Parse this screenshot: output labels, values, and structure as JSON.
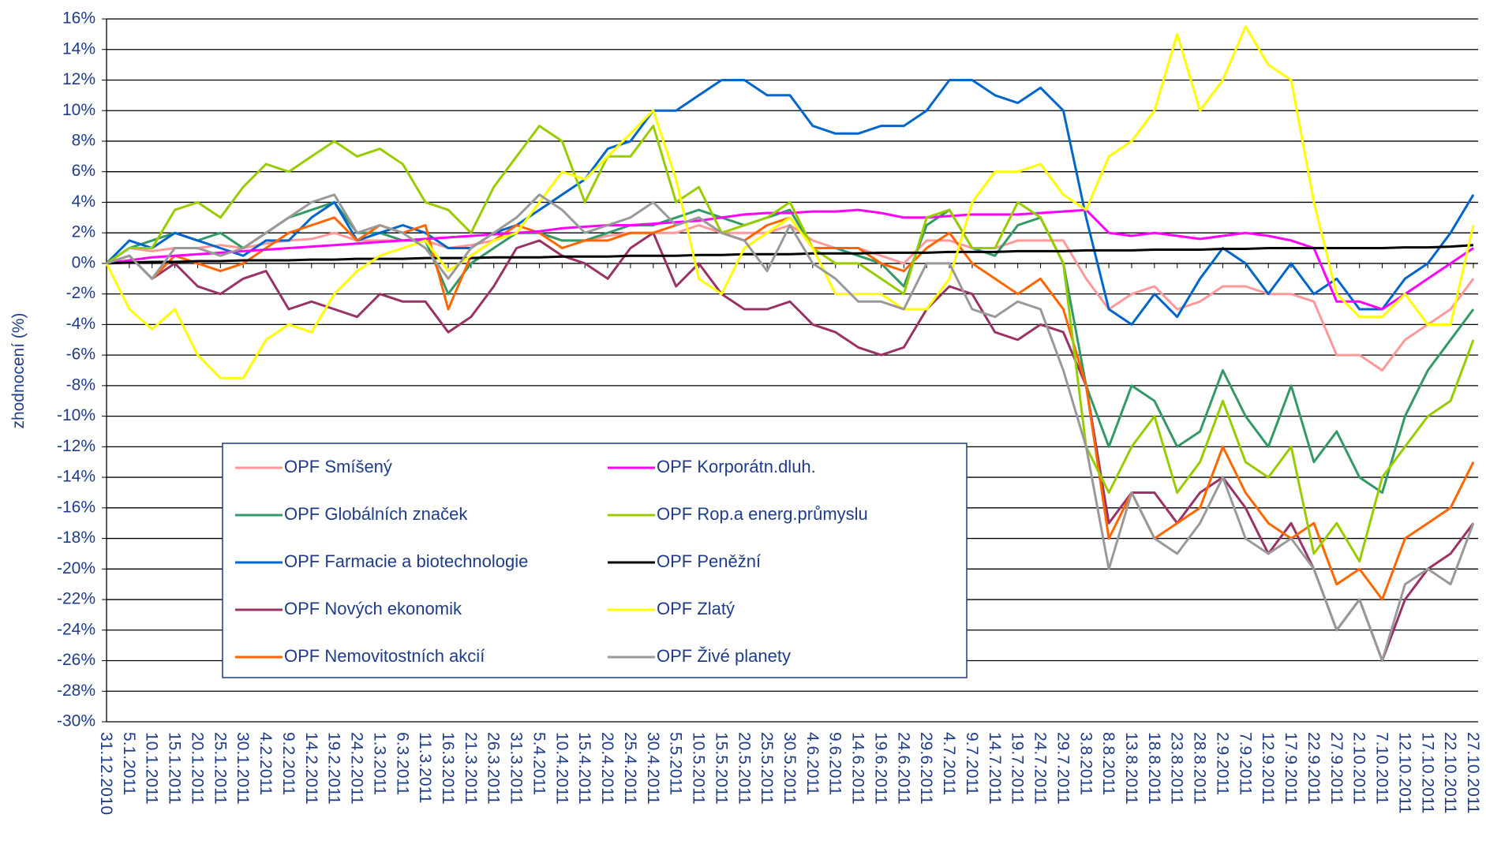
{
  "chart_data": {
    "type": "line",
    "y_axis_label": "zhodnocení (%)",
    "categories": [
      "31.12.2010",
      "5.1.2011",
      "10.1.2011",
      "15.1.2011",
      "20.1.2011",
      "25.1.2011",
      "30.1.2011",
      "4.2.2011",
      "9.2.2011",
      "14.2.2011",
      "19.2.2011",
      "24.2.2011",
      "1.3.2011",
      "6.3.2011",
      "11.3.2011",
      "16.3.2011",
      "21.3.2011",
      "26.3.2011",
      "31.3.2011",
      "5.4.2011",
      "10.4.2011",
      "15.4.2011",
      "20.4.2011",
      "25.4.2011",
      "30.4.2011",
      "5.5.2011",
      "10.5.2011",
      "15.5.2011",
      "20.5.2011",
      "25.5.2011",
      "30.5.2011",
      "4.6.2011",
      "9.6.2011",
      "14.6.2011",
      "19.6.2011",
      "24.6.2011",
      "29.6.2011",
      "4.7.2011",
      "9.7.2011",
      "14.7.2011",
      "19.7.2011",
      "24.7.2011",
      "29.7.2011",
      "3.8.2011",
      "8.8.2011",
      "13.8.2011",
      "18.8.2011",
      "23.8.2011",
      "28.8.2011",
      "2.9.2011",
      "7.9.2011",
      "12.9.2011",
      "17.9.2011",
      "22.9.2011",
      "27.9.2011",
      "2.10.2011",
      "7.10.2011",
      "12.10.2011",
      "17.10.2011",
      "22.10.2011",
      "27.10.2011"
    ],
    "ylim": [
      -30,
      16
    ],
    "yticks": [
      {
        "value": -30,
        "label": "-30%"
      },
      {
        "value": -28,
        "label": "-28%"
      },
      {
        "value": -26,
        "label": "-26%"
      },
      {
        "value": -24,
        "label": "-24%"
      },
      {
        "value": -22,
        "label": "-22%"
      },
      {
        "value": -20,
        "label": "-20%"
      },
      {
        "value": -18,
        "label": "-18%"
      },
      {
        "value": -16,
        "label": "-16%"
      },
      {
        "value": -14,
        "label": "-14%"
      },
      {
        "value": -12,
        "label": "-12%"
      },
      {
        "value": -10,
        "label": "-10%"
      },
      {
        "value": -8,
        "label": "-8%"
      },
      {
        "value": -6,
        "label": "-6%"
      },
      {
        "value": -4,
        "label": "-4%"
      },
      {
        "value": -2,
        "label": "-2%"
      },
      {
        "value": 0,
        "label": "0%"
      },
      {
        "value": 2,
        "label": "2%"
      },
      {
        "value": 4,
        "label": "4%"
      },
      {
        "value": 6,
        "label": "6%"
      },
      {
        "value": 8,
        "label": "8%"
      },
      {
        "value": 10,
        "label": "10%"
      },
      {
        "value": 12,
        "label": "12%"
      },
      {
        "value": 14,
        "label": "14%"
      },
      {
        "value": 16,
        "label": "16%"
      }
    ],
    "grid": true,
    "series": [
      {
        "name": "OPF Smíšený",
        "color": "#ff9999",
        "values": [
          0,
          1,
          0.8,
          1,
          1,
          1.2,
          1,
          1.3,
          1.5,
          1.6,
          2,
          1.5,
          1.5,
          1.5,
          1.5,
          1,
          1.2,
          1.5,
          2,
          2,
          1.5,
          1.5,
          1.8,
          2,
          2,
          2,
          2.5,
          2,
          2,
          2,
          2.5,
          1.5,
          1,
          1,
          0.5,
          0,
          1.5,
          1.5,
          1,
          1,
          1.5,
          1.5,
          1.5,
          -1,
          -3,
          -2,
          -1.5,
          -3,
          -2.5,
          -1.5,
          -1.5,
          -2,
          -2,
          -2.5,
          -6,
          -6,
          -7,
          -5,
          -4,
          -3,
          -1
        ]
      },
      {
        "name": "OPF Globálních značek",
        "color": "#339966",
        "values": [
          0,
          1,
          1.5,
          2,
          1.5,
          2,
          1,
          2,
          3,
          3.5,
          4,
          2,
          2,
          1.5,
          1.5,
          -2,
          0,
          1,
          2,
          2,
          1.5,
          1.5,
          2,
          2.5,
          2.5,
          3,
          3.5,
          3,
          2.5,
          3,
          3.5,
          1,
          1,
          0.5,
          0,
          -1.5,
          2.5,
          3.5,
          1,
          0.5,
          2.5,
          3,
          0,
          -8,
          -12,
          -8,
          -9,
          -12,
          -11,
          -7,
          -10,
          -12,
          -8,
          -13,
          -11,
          -14,
          -15,
          -10,
          -7,
          -5,
          -3
        ]
      },
      {
        "name": "OPF Farmacie a biotechnologie",
        "color": "#0066cc",
        "values": [
          0,
          1.5,
          1,
          2,
          1.5,
          1,
          0.5,
          1.5,
          1.5,
          3,
          4,
          1.5,
          2,
          2.5,
          2,
          1,
          1,
          2,
          2.5,
          3.5,
          4.5,
          5.5,
          7.5,
          8,
          10,
          10,
          11,
          12,
          12,
          11,
          11,
          9,
          8.5,
          8.5,
          9,
          9,
          10,
          12,
          12,
          11,
          10.5,
          11.5,
          10,
          3,
          -3,
          -4,
          -2,
          -3.5,
          -1,
          1,
          0,
          -2,
          0,
          -2,
          -1,
          -3,
          -3,
          -1,
          0,
          2,
          4.5
        ]
      },
      {
        "name": "OPF Nových ekonomik",
        "color": "#993366",
        "values": [
          0,
          0.5,
          -1,
          0,
          -1.5,
          -2,
          -1,
          -0.5,
          -3,
          -2.5,
          -3,
          -3.5,
          -2,
          -2.5,
          -2.5,
          -4.5,
          -3.5,
          -1.5,
          1,
          1.5,
          0.5,
          0,
          -1,
          1,
          2,
          -1.5,
          0,
          -2,
          -3,
          -3,
          -2.5,
          -4,
          -4.5,
          -5.5,
          -6,
          -5.5,
          -3,
          -1.5,
          -2,
          -4.5,
          -5,
          -4,
          -4.5,
          -8,
          -17,
          -15,
          -15,
          -17,
          -15,
          -14,
          -16,
          -19,
          -17,
          -20,
          -24,
          -22,
          -26,
          -22,
          -20,
          -19,
          -17
        ]
      },
      {
        "name": "OPF Nemovitostních akcií",
        "color": "#ff6600",
        "values": [
          0,
          0.5,
          -1,
          0.5,
          0,
          -0.5,
          0,
          1,
          2,
          2.5,
          3,
          1.5,
          2.5,
          2,
          2.5,
          -3,
          0.5,
          1.5,
          2.5,
          2,
          1,
          1.5,
          1.5,
          2,
          2,
          2.5,
          3,
          2,
          1.5,
          2.5,
          3,
          1,
          1,
          1,
          0,
          -0.5,
          1,
          2,
          0,
          -1,
          -2,
          -1,
          -3,
          -8,
          -18,
          -15,
          -18,
          -17,
          -16,
          -12,
          -15,
          -17,
          -18,
          -17,
          -21,
          -20,
          -22,
          -18,
          -17,
          -16,
          -13
        ]
      },
      {
        "name": "OPF Korporátn.dluh.",
        "color": "#ff00ff",
        "values": [
          0,
          0.2,
          0.4,
          0.5,
          0.6,
          0.7,
          0.8,
          0.9,
          1,
          1.1,
          1.2,
          1.3,
          1.4,
          1.5,
          1.6,
          1.7,
          1.8,
          1.9,
          2,
          2.1,
          2.3,
          2.4,
          2.5,
          2.5,
          2.6,
          2.7,
          2.8,
          3,
          3.2,
          3.3,
          3.3,
          3.4,
          3.4,
          3.5,
          3.3,
          3,
          3,
          3.1,
          3.2,
          3.2,
          3.2,
          3.3,
          3.4,
          3.5,
          2,
          1.8,
          2,
          1.8,
          1.6,
          1.8,
          2,
          1.8,
          1.5,
          1,
          -2.5,
          -2.5,
          -3,
          -2,
          -1,
          0,
          1
        ]
      },
      {
        "name": "OPF Rop.a energ.průmyslu",
        "color": "#99cc00",
        "values": [
          0,
          1,
          1,
          3.5,
          4,
          3,
          5,
          6.5,
          6,
          7,
          8,
          7,
          7.5,
          6.5,
          4,
          3.5,
          2,
          5,
          7,
          9,
          8,
          4,
          7,
          7,
          9,
          4,
          5,
          2,
          2.5,
          3,
          4,
          1,
          0,
          0,
          -1,
          -2,
          3,
          3.5,
          1,
          1,
          4,
          3,
          0,
          -12,
          -15,
          -12,
          -10,
          -15,
          -13,
          -9,
          -13,
          -14,
          -12,
          -19,
          -17,
          -19.5,
          -14,
          -12,
          -10,
          -9,
          -5
        ]
      },
      {
        "name": "OPF Peněžní",
        "color": "#000000",
        "values": [
          0,
          0.05,
          0.1,
          0.1,
          0.15,
          0.15,
          0.2,
          0.2,
          0.2,
          0.25,
          0.25,
          0.3,
          0.3,
          0.3,
          0.35,
          0.35,
          0.35,
          0.4,
          0.4,
          0.4,
          0.45,
          0.45,
          0.45,
          0.5,
          0.5,
          0.5,
          0.55,
          0.55,
          0.6,
          0.6,
          0.6,
          0.65,
          0.65,
          0.65,
          0.7,
          0.7,
          0.7,
          0.75,
          0.75,
          0.75,
          0.8,
          0.8,
          0.8,
          0.85,
          0.85,
          0.85,
          0.9,
          0.9,
          0.9,
          0.95,
          0.95,
          1,
          1,
          1,
          1,
          1,
          1,
          1.05,
          1.05,
          1.1,
          1.2
        ]
      },
      {
        "name": "OPF Zlatý",
        "color": "#ffff00",
        "values": [
          0,
          -3,
          -4.3,
          -3,
          -6,
          -7.5,
          -7.5,
          -5,
          -4,
          -4.5,
          -2,
          -0.5,
          0.5,
          1,
          1.5,
          -0.5,
          0.5,
          1.5,
          2,
          4,
          6,
          5.5,
          7,
          8.5,
          10,
          5.5,
          -1,
          -2,
          1,
          2,
          3,
          1,
          -2,
          -2,
          -2,
          -3,
          -3,
          -1,
          4,
          6,
          6,
          6.5,
          4.5,
          3.5,
          7,
          8,
          10,
          15,
          10,
          12,
          15.5,
          13,
          12,
          4,
          -2,
          -3.5,
          -3.5,
          -2,
          -4,
          -4,
          2.5
        ]
      },
      {
        "name": "OPF Živé planety",
        "color": "#999999",
        "values": [
          0,
          0.5,
          -1,
          1,
          1,
          0.5,
          1,
          2,
          3,
          4,
          4.5,
          2,
          2.5,
          2,
          1,
          -1,
          1,
          2,
          3,
          4.5,
          3.5,
          2,
          2.5,
          3,
          4,
          2.5,
          3,
          2,
          1.5,
          -0.5,
          2.5,
          0,
          -1,
          -2.5,
          -2.5,
          -3,
          0,
          0,
          -3,
          -3.5,
          -2.5,
          -3,
          -7,
          -12,
          -20,
          -15,
          -18,
          -19,
          -17,
          -14,
          -18,
          -19,
          -18,
          -20,
          -24,
          -22,
          -26,
          -21,
          -20,
          -21,
          -17
        ]
      }
    ]
  }
}
